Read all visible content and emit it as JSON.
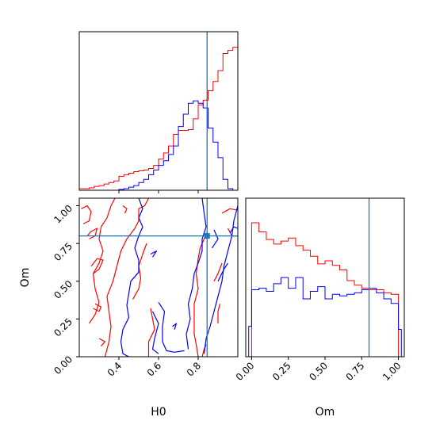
{
  "colors": {
    "series_a": "#ff0000",
    "series_b": "#0000ff",
    "truth": "#1f77b4"
  },
  "chart_data": [
    {
      "panel": "H0-histogram",
      "type": "histogram",
      "xlim": [
        0.2,
        1.0
      ],
      "truth": 0.845,
      "bin_edges": [
        0.2,
        0.225,
        0.25,
        0.275,
        0.3,
        0.325,
        0.35,
        0.375,
        0.4,
        0.425,
        0.45,
        0.475,
        0.5,
        0.525,
        0.55,
        0.575,
        0.6,
        0.625,
        0.65,
        0.675,
        0.7,
        0.725,
        0.75,
        0.775,
        0.8,
        0.825,
        0.85,
        0.875,
        0.9,
        0.925,
        0.95,
        0.975,
        1.0
      ],
      "series": [
        {
          "color": "#ff0000",
          "values": [
            0.01,
            0.01,
            0.015,
            0.025,
            0.03,
            0.04,
            0.05,
            0.06,
            0.09,
            0.1,
            0.11,
            0.12,
            0.125,
            0.13,
            0.14,
            0.16,
            0.2,
            0.24,
            0.285,
            0.36,
            0.385,
            0.385,
            0.39,
            0.46,
            0.55,
            0.58,
            0.64,
            0.7,
            0.77,
            0.88,
            0.9,
            0.92
          ]
        },
        {
          "color": "#0000ff",
          "values": [
            0,
            0,
            0,
            0,
            0,
            0,
            0,
            0,
            0.005,
            0.01,
            0.02,
            0.03,
            0.05,
            0.07,
            0.1,
            0.13,
            0.16,
            0.19,
            0.23,
            0.285,
            0.41,
            0.49,
            0.56,
            0.575,
            0.56,
            0.53,
            0.4,
            0.31,
            0.21,
            0.07,
            0.01,
            0
          ]
        }
      ]
    },
    {
      "panel": "Om-histogram",
      "type": "histogram",
      "xlabel": "Om",
      "xlim": [
        0,
        1
      ],
      "xticks": [
        "0.00",
        "0.25",
        "0.50",
        "0.75",
        "1.00"
      ],
      "truth": 0.8,
      "bin_edges": [
        -0.02,
        0.0,
        0.05,
        0.1,
        0.15,
        0.2,
        0.25,
        0.3,
        0.35,
        0.4,
        0.45,
        0.5,
        0.55,
        0.6,
        0.65,
        0.7,
        0.75,
        0.8,
        0.85,
        0.9,
        0.95,
        1.0,
        1.02
      ],
      "series": [
        {
          "color": "#ff0000",
          "values": [
            0,
            0.88,
            0.82,
            0.77,
            0.74,
            0.76,
            0.78,
            0.73,
            0.7,
            0.66,
            0.61,
            0.63,
            0.6,
            0.57,
            0.5,
            0.47,
            0.45,
            0.44,
            0.44,
            0.42,
            0.41,
            0.0
          ]
        },
        {
          "color": "#0000ff",
          "values": [
            0.2,
            0.44,
            0.45,
            0.43,
            0.48,
            0.52,
            0.45,
            0.52,
            0.38,
            0.43,
            0.46,
            0.38,
            0.41,
            0.4,
            0.41,
            0.42,
            0.44,
            0.45,
            0.42,
            0.38,
            0.35,
            0.18
          ]
        }
      ]
    },
    {
      "panel": "H0-Om-contour",
      "type": "contour",
      "xlabel": "H0",
      "ylabel": "Om",
      "xlim": [
        0.2,
        1.0
      ],
      "ylim": [
        0.0,
        1.05
      ],
      "xticks": [
        "0.4",
        "0.6",
        "0.8"
      ],
      "yticks": [
        "0.00",
        "0.25",
        "0.50",
        "0.75",
        "1.00"
      ],
      "truth": [
        0.845,
        0.8
      ],
      "series": [
        {
          "color": "#ff0000",
          "paths": [
            [
              [
                0.33,
                0.0
              ],
              [
                0.35,
                0.1
              ],
              [
                0.36,
                0.2
              ],
              [
                0.35,
                0.3
              ],
              [
                0.34,
                0.4
              ],
              [
                0.37,
                0.5
              ],
              [
                0.39,
                0.6
              ],
              [
                0.41,
                0.7
              ],
              [
                0.44,
                0.78
              ],
              [
                0.48,
                0.85
              ],
              [
                0.5,
                0.9
              ],
              [
                0.5,
                0.98
              ],
              [
                0.53,
                1.0
              ],
              [
                0.55,
                1.05
              ]
            ],
            [
              [
                0.25,
                0.22
              ],
              [
                0.28,
                0.28
              ],
              [
                0.3,
                0.36
              ],
              [
                0.28,
                0.45
              ],
              [
                0.27,
                0.55
              ],
              [
                0.3,
                0.62
              ],
              [
                0.32,
                0.7
              ],
              [
                0.3,
                0.78
              ],
              [
                0.31,
                0.86
              ],
              [
                0.34,
                0.92
              ],
              [
                0.36,
                1.0
              ],
              [
                0.38,
                1.05
              ]
            ],
            [
              [
                0.21,
                0.98
              ],
              [
                0.24,
                1.0
              ],
              [
                0.26,
                0.96
              ],
              [
                0.25,
                0.9
              ],
              [
                0.22,
                0.88
              ]
            ],
            [
              [
                0.25,
                0.78
              ],
              [
                0.28,
                0.8
              ],
              [
                0.29,
                0.85
              ],
              [
                0.26,
                0.83
              ],
              [
                0.24,
                0.8
              ]
            ],
            [
              [
                0.27,
                0.55
              ],
              [
                0.3,
                0.58
              ],
              [
                0.32,
                0.64
              ],
              [
                0.29,
                0.65
              ],
              [
                0.26,
                0.6
              ]
            ],
            [
              [
                0.3,
                0.12
              ],
              [
                0.33,
                0.1
              ],
              [
                0.31,
                0.07
              ]
            ],
            [
              [
                0.28,
                0.35
              ],
              [
                0.31,
                0.33
              ],
              [
                0.3,
                0.3
              ],
              [
                0.27,
                0.32
              ]
            ],
            [
              [
                0.55,
                0.0
              ],
              [
                0.55,
                0.1
              ],
              [
                0.58,
                0.18
              ],
              [
                0.57,
                0.25
              ],
              [
                0.56,
                0.32
              ]
            ],
            [
              [
                0.47,
                0.38
              ],
              [
                0.5,
                0.45
              ],
              [
                0.51,
                0.52
              ],
              [
                0.5,
                0.6
              ],
              [
                0.52,
                0.68
              ],
              [
                0.54,
                0.75
              ]
            ],
            [
              [
                0.42,
                1.0
              ],
              [
                0.44,
                0.98
              ],
              [
                0.43,
                0.95
              ]
            ],
            [
              [
                0.8,
                0.0
              ],
              [
                0.79,
                0.08
              ],
              [
                0.78,
                0.15
              ],
              [
                0.78,
                0.25
              ],
              [
                0.78,
                0.35
              ],
              [
                0.8,
                0.45
              ],
              [
                0.79,
                0.55
              ],
              [
                0.8,
                0.65
              ],
              [
                0.81,
                0.72
              ],
              [
                0.83,
                0.78
              ],
              [
                0.84,
                0.82
              ]
            ],
            [
              [
                0.82,
                0.0
              ],
              [
                0.83,
                0.05
              ],
              [
                0.84,
                0.08
              ]
            ],
            [
              [
                0.9,
                0.22
              ],
              [
                0.9,
                0.3
              ],
              [
                0.91,
                0.35
              ]
            ],
            [
              [
                0.92,
                0.62
              ],
              [
                0.9,
                0.55
              ],
              [
                0.88,
                0.5
              ]
            ],
            [
              [
                0.95,
                0.85
              ],
              [
                0.97,
                0.8
              ],
              [
                1.0,
                0.8
              ]
            ],
            [
              [
                0.92,
                0.95
              ],
              [
                0.96,
                0.98
              ],
              [
                1.0,
                0.97
              ]
            ]
          ]
        },
        {
          "color": "#0000ff",
          "paths": [
            [
              [
                0.5,
                1.05
              ],
              [
                0.52,
                0.98
              ],
              [
                0.5,
                0.92
              ],
              [
                0.52,
                0.86
              ],
              [
                0.5,
                0.8
              ],
              [
                0.48,
                0.72
              ],
              [
                0.5,
                0.64
              ],
              [
                0.5,
                0.56
              ],
              [
                0.46,
                0.5
              ],
              [
                0.45,
                0.42
              ],
              [
                0.44,
                0.34
              ],
              [
                0.45,
                0.26
              ],
              [
                0.42,
                0.18
              ],
              [
                0.41,
                0.1
              ],
              [
                0.42,
                0.02
              ],
              [
                0.45,
                0.0
              ]
            ],
            [
              [
                0.57,
                0.3
              ],
              [
                0.6,
                0.22
              ],
              [
                0.58,
                0.12
              ],
              [
                0.57,
                0.05
              ],
              [
                0.6,
                0.02
              ]
            ],
            [
              [
                0.6,
                0.36
              ],
              [
                0.63,
                0.3
              ],
              [
                0.62,
                0.2
              ],
              [
                0.62,
                0.1
              ],
              [
                0.64,
                0.04
              ],
              [
                0.68,
                0.03
              ],
              [
                0.73,
                0.04
              ]
            ],
            [
              [
                0.83,
                0.02
              ],
              [
                0.84,
                0.12
              ],
              [
                0.86,
                0.2
              ],
              [
                0.88,
                0.3
              ],
              [
                0.9,
                0.4
              ],
              [
                0.92,
                0.5
              ],
              [
                0.93,
                0.6
              ],
              [
                0.95,
                0.7
              ],
              [
                0.97,
                0.8
              ],
              [
                0.98,
                0.9
              ],
              [
                1.0,
                1.0
              ]
            ],
            [
              [
                0.75,
                0.05
              ],
              [
                0.74,
                0.15
              ],
              [
                0.76,
                0.25
              ],
              [
                0.75,
                0.35
              ],
              [
                0.77,
                0.45
              ],
              [
                0.78,
                0.55
              ],
              [
                0.8,
                0.62
              ],
              [
                0.82,
                0.7
              ],
              [
                0.82,
                0.78
              ],
              [
                0.84,
                0.86
              ],
              [
                0.83,
                0.95
              ],
              [
                0.82,
                1.05
              ]
            ],
            [
              [
                0.67,
                0.2
              ],
              [
                0.69,
                0.22
              ],
              [
                0.68,
                0.18
              ]
            ],
            [
              [
                0.56,
                0.68
              ],
              [
                0.59,
                0.7
              ],
              [
                0.57,
                0.66
              ]
            ],
            [
              [
                0.87,
                0.72
              ],
              [
                0.9,
                0.78
              ],
              [
                0.88,
                0.84
              ]
            ],
            [
              [
                0.96,
                0.82
              ],
              [
                0.98,
                0.86
              ],
              [
                1.0,
                0.85
              ]
            ],
            [
              [
                0.9,
                0.5
              ],
              [
                0.93,
                0.58
              ],
              [
                0.95,
                0.62
              ]
            ]
          ]
        }
      ]
    }
  ]
}
